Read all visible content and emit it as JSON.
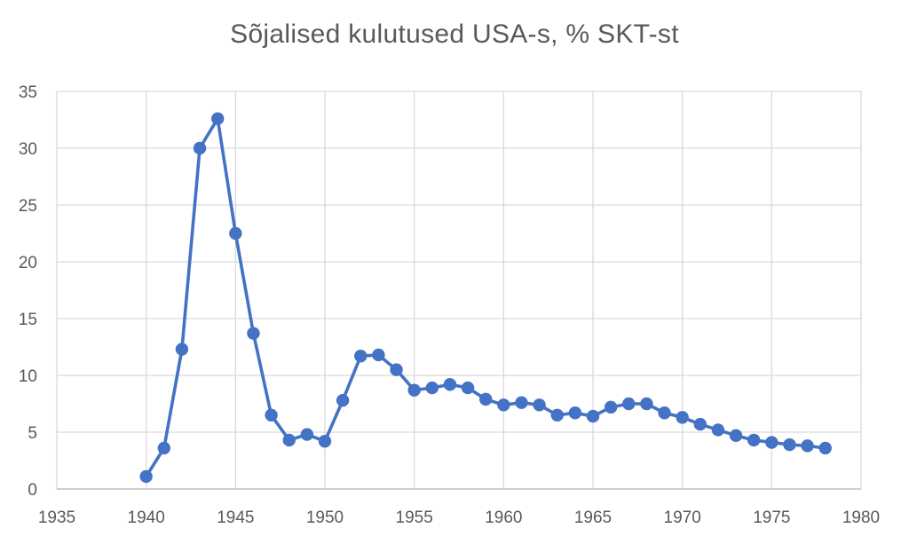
{
  "chart_data": {
    "type": "line",
    "title": "Sõjalised kulutused USA-s, % SKT-st",
    "xlabel": "",
    "ylabel": "",
    "xlim": [
      1935,
      1980
    ],
    "ylim": [
      0,
      35
    ],
    "x_ticks": [
      1935,
      1940,
      1945,
      1950,
      1955,
      1960,
      1965,
      1970,
      1975,
      1980
    ],
    "y_ticks": [
      0,
      5,
      10,
      15,
      20,
      25,
      30,
      35
    ],
    "grid": true,
    "legend": "none",
    "series": [
      {
        "color": "#4472C4",
        "marker": "circle",
        "x": [
          1940,
          1941,
          1942,
          1943,
          1944,
          1945,
          1946,
          1947,
          1948,
          1949,
          1950,
          1951,
          1952,
          1953,
          1954,
          1955,
          1956,
          1957,
          1958,
          1959,
          1960,
          1961,
          1962,
          1963,
          1964,
          1965,
          1966,
          1967,
          1968,
          1969,
          1970,
          1971,
          1972,
          1973,
          1974,
          1975,
          1976,
          1977,
          1978
        ],
        "y": [
          1.1,
          3.6,
          12.3,
          30.0,
          32.6,
          22.5,
          13.7,
          6.5,
          4.3,
          4.8,
          4.2,
          7.8,
          11.7,
          11.8,
          10.5,
          8.7,
          8.9,
          9.2,
          8.9,
          7.9,
          7.4,
          7.6,
          7.4,
          6.5,
          6.7,
          6.4,
          7.2,
          7.5,
          7.5,
          6.7,
          6.3,
          5.7,
          5.2,
          4.7,
          4.3,
          4.1,
          3.9,
          3.8,
          3.6
        ]
      }
    ]
  }
}
